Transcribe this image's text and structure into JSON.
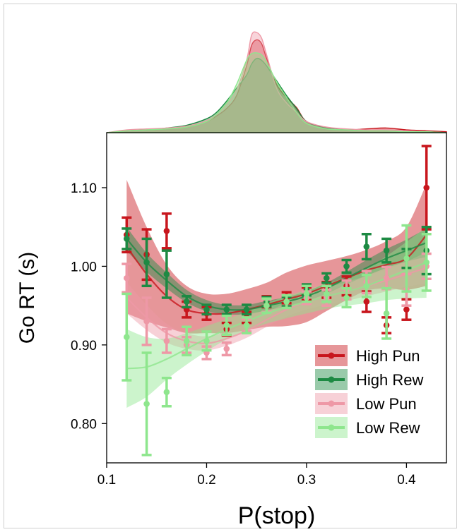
{
  "chart_data": {
    "type": "line",
    "xlabel": "P(stop)",
    "ylabel": "Go RT (s)",
    "xlim": [
      0.1,
      0.44
    ],
    "ylim": [
      0.75,
      1.17
    ],
    "xticks": [
      0.1,
      0.2,
      0.3,
      0.4
    ],
    "xtick_labels": [
      "0.1",
      "0.2",
      "0.3",
      "0.4"
    ],
    "yticks": [
      0.8,
      0.9,
      1.0,
      1.1
    ],
    "ytick_labels": [
      "0.80",
      "0.90",
      "1.00",
      "1.10"
    ],
    "grid": false,
    "legend_position": "bottom-right",
    "marginal_density_top": true,
    "series": [
      {
        "name": "High Pun",
        "color": "#c8161d",
        "x": [
          0.12,
          0.14,
          0.16,
          0.18,
          0.2,
          0.22,
          0.24,
          0.26,
          0.28,
          0.3,
          0.32,
          0.34,
          0.36,
          0.38,
          0.4,
          0.42
        ],
        "y": [
          1.04,
          1.015,
          1.045,
          0.945,
          0.94,
          0.92,
          0.935,
          0.955,
          0.96,
          0.965,
          0.97,
          0.975,
          0.955,
          0.925,
          0.945,
          1.1
        ],
        "err": [
          0.022,
          0.032,
          0.022,
          0.01,
          0.008,
          0.008,
          0.007,
          0.007,
          0.007,
          0.008,
          0.01,
          0.012,
          0.013,
          0.01,
          0.013,
          0.053
        ],
        "fit": [
          1.025,
          0.99,
          0.962,
          0.945,
          0.94,
          0.94,
          0.945,
          0.951,
          0.958,
          0.965,
          0.975,
          0.985,
          0.995,
          1.002,
          1.01,
          1.04
        ],
        "band": [
          0.085,
          0.06,
          0.04,
          0.03,
          0.025,
          0.025,
          0.026,
          0.028,
          0.034,
          0.036,
          0.032,
          0.028,
          0.026,
          0.03,
          0.04,
          0.065
        ]
      },
      {
        "name": "High Rew",
        "color": "#1d8a43",
        "x": [
          0.12,
          0.14,
          0.16,
          0.18,
          0.2,
          0.22,
          0.24,
          0.26,
          0.28,
          0.3,
          0.32,
          0.34,
          0.36,
          0.38,
          0.4,
          0.42
        ],
        "y": [
          1.035,
          1.005,
          0.99,
          0.955,
          0.945,
          0.945,
          0.945,
          0.955,
          0.955,
          0.97,
          0.985,
          1.0,
          1.025,
          1.02,
          1.01,
          1.02
        ],
        "err": [
          0.013,
          0.03,
          0.03,
          0.007,
          0.006,
          0.006,
          0.006,
          0.006,
          0.006,
          0.007,
          0.006,
          0.008,
          0.016,
          0.015,
          0.012,
          0.03
        ],
        "fit": [
          1.035,
          1.005,
          0.982,
          0.962,
          0.95,
          0.945,
          0.945,
          0.95,
          0.955,
          0.962,
          0.972,
          0.985,
          0.998,
          1.01,
          1.02,
          1.03
        ],
        "band": [
          0.015,
          0.012,
          0.01,
          0.008,
          0.007,
          0.006,
          0.006,
          0.006,
          0.006,
          0.006,
          0.007,
          0.008,
          0.01,
          0.012,
          0.014,
          0.018
        ]
      },
      {
        "name": "Low Pun",
        "color": "#ee98a6",
        "x": [
          0.12,
          0.14,
          0.16,
          0.18,
          0.2,
          0.22,
          0.24,
          0.26,
          0.28,
          0.3,
          0.32,
          0.34,
          0.36,
          0.38,
          0.4,
          0.42
        ],
        "y": [
          0.985,
          0.93,
          0.905,
          0.9,
          0.89,
          0.895,
          0.925,
          0.95,
          0.955,
          0.96,
          0.96,
          0.97,
          0.98,
          0.985,
          0.97,
          1.0
        ],
        "err": [
          0.018,
          0.03,
          0.015,
          0.01,
          0.008,
          0.008,
          0.008,
          0.008,
          0.008,
          0.008,
          0.01,
          0.012,
          0.014,
          0.014,
          0.02,
          0.016
        ],
        "fit": [
          0.96,
          0.935,
          0.915,
          0.905,
          0.902,
          0.908,
          0.918,
          0.932,
          0.945,
          0.955,
          0.962,
          0.968,
          0.975,
          0.982,
          0.99,
          0.998
        ],
        "band": [
          0.02,
          0.016,
          0.012,
          0.01,
          0.009,
          0.009,
          0.009,
          0.009,
          0.009,
          0.01,
          0.011,
          0.012,
          0.013,
          0.014,
          0.016,
          0.02
        ]
      },
      {
        "name": "Low Rew",
        "color": "#8ee68d",
        "x": [
          0.12,
          0.14,
          0.16,
          0.18,
          0.2,
          0.22,
          0.24,
          0.26,
          0.28,
          0.3,
          0.32,
          0.34,
          0.36,
          0.38,
          0.4,
          0.42
        ],
        "y": [
          0.91,
          0.825,
          0.84,
          0.905,
          0.905,
          0.925,
          0.925,
          0.95,
          0.955,
          0.965,
          0.965,
          0.96,
          0.975,
          0.94,
          1.01,
          1.005
        ],
        "err": [
          0.055,
          0.065,
          0.018,
          0.018,
          0.012,
          0.012,
          0.01,
          0.009,
          0.008,
          0.01,
          0.01,
          0.012,
          0.014,
          0.032,
          0.042,
          0.036
        ],
        "fit": [
          0.87,
          0.872,
          0.882,
          0.895,
          0.908,
          0.92,
          0.93,
          0.94,
          0.948,
          0.955,
          0.962,
          0.968,
          0.975,
          0.985,
          0.995,
          1.005
        ],
        "band": [
          0.05,
          0.038,
          0.026,
          0.02,
          0.016,
          0.013,
          0.012,
          0.013,
          0.014,
          0.015,
          0.016,
          0.018,
          0.022,
          0.028,
          0.036,
          0.045
        ]
      }
    ],
    "density_x": [
      0.1,
      0.12,
      0.14,
      0.16,
      0.18,
      0.2,
      0.21,
      0.22,
      0.23,
      0.24,
      0.245,
      0.25,
      0.255,
      0.26,
      0.27,
      0.28,
      0.29,
      0.3,
      0.32,
      0.34,
      0.36,
      0.38,
      0.4,
      0.42,
      0.44
    ],
    "density": [
      {
        "name": "High Pun",
        "values": [
          0.0,
          0.02,
          0.03,
          0.04,
          0.06,
          0.12,
          0.18,
          0.26,
          0.4,
          0.72,
          0.94,
          1.0,
          0.96,
          0.8,
          0.52,
          0.38,
          0.27,
          0.12,
          0.05,
          0.03,
          0.04,
          0.05,
          0.03,
          0.02,
          0.01
        ]
      },
      {
        "name": "High Rew",
        "values": [
          0.0,
          0.02,
          0.03,
          0.05,
          0.08,
          0.15,
          0.22,
          0.34,
          0.48,
          0.62,
          0.74,
          0.8,
          0.78,
          0.72,
          0.56,
          0.4,
          0.26,
          0.12,
          0.05,
          0.03,
          0.02,
          0.02,
          0.01,
          0.01,
          0.0
        ]
      },
      {
        "name": "Low Pun",
        "values": [
          0.0,
          0.03,
          0.04,
          0.05,
          0.07,
          0.13,
          0.2,
          0.3,
          0.46,
          0.78,
          1.05,
          1.08,
          1.02,
          0.84,
          0.48,
          0.32,
          0.22,
          0.12,
          0.06,
          0.04,
          0.03,
          0.03,
          0.02,
          0.01,
          0.0
        ]
      },
      {
        "name": "Low Rew",
        "values": [
          0.0,
          0.02,
          0.03,
          0.04,
          0.06,
          0.12,
          0.2,
          0.32,
          0.52,
          0.78,
          0.85,
          0.86,
          0.84,
          0.76,
          0.55,
          0.38,
          0.22,
          0.1,
          0.04,
          0.03,
          0.02,
          0.02,
          0.01,
          0.01,
          0.0
        ]
      }
    ]
  }
}
